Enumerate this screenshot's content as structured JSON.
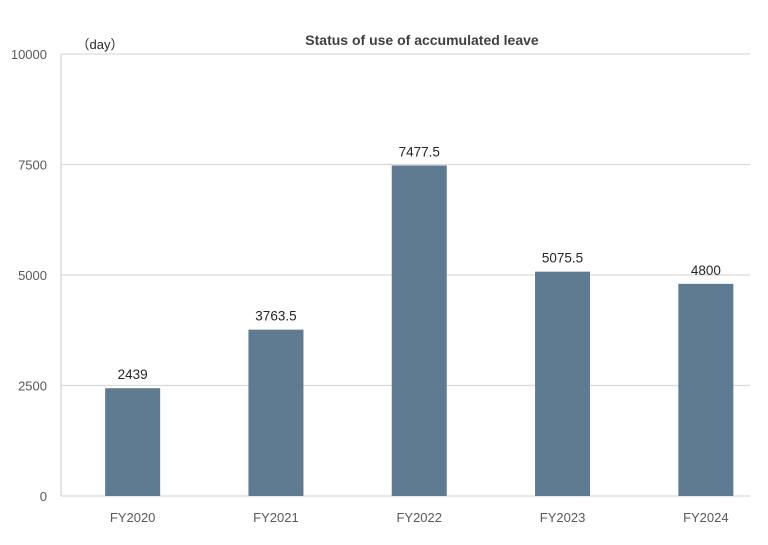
{
  "chart_data": {
    "type": "bar",
    "title": "Status of use of accumulated leave",
    "unit_label": "（day）",
    "xlabel": "",
    "ylabel": "",
    "ylim": [
      0,
      10000
    ],
    "yticks": [
      0,
      2500,
      5000,
      7500,
      10000
    ],
    "ytick_labels": [
      "0",
      "2500",
      "5000",
      "7500",
      "10000"
    ],
    "categories": [
      "FY2020",
      "FY2021",
      "FY2022",
      "FY2023",
      "FY2024"
    ],
    "values": [
      2439,
      3763.5,
      7477.5,
      5075.5,
      4800
    ],
    "value_labels": [
      "2439",
      "3763.5",
      "7477.5",
      "5075.5",
      "4800"
    ],
    "grid": true,
    "legend": "none",
    "bar_color": "#5f7b91"
  }
}
